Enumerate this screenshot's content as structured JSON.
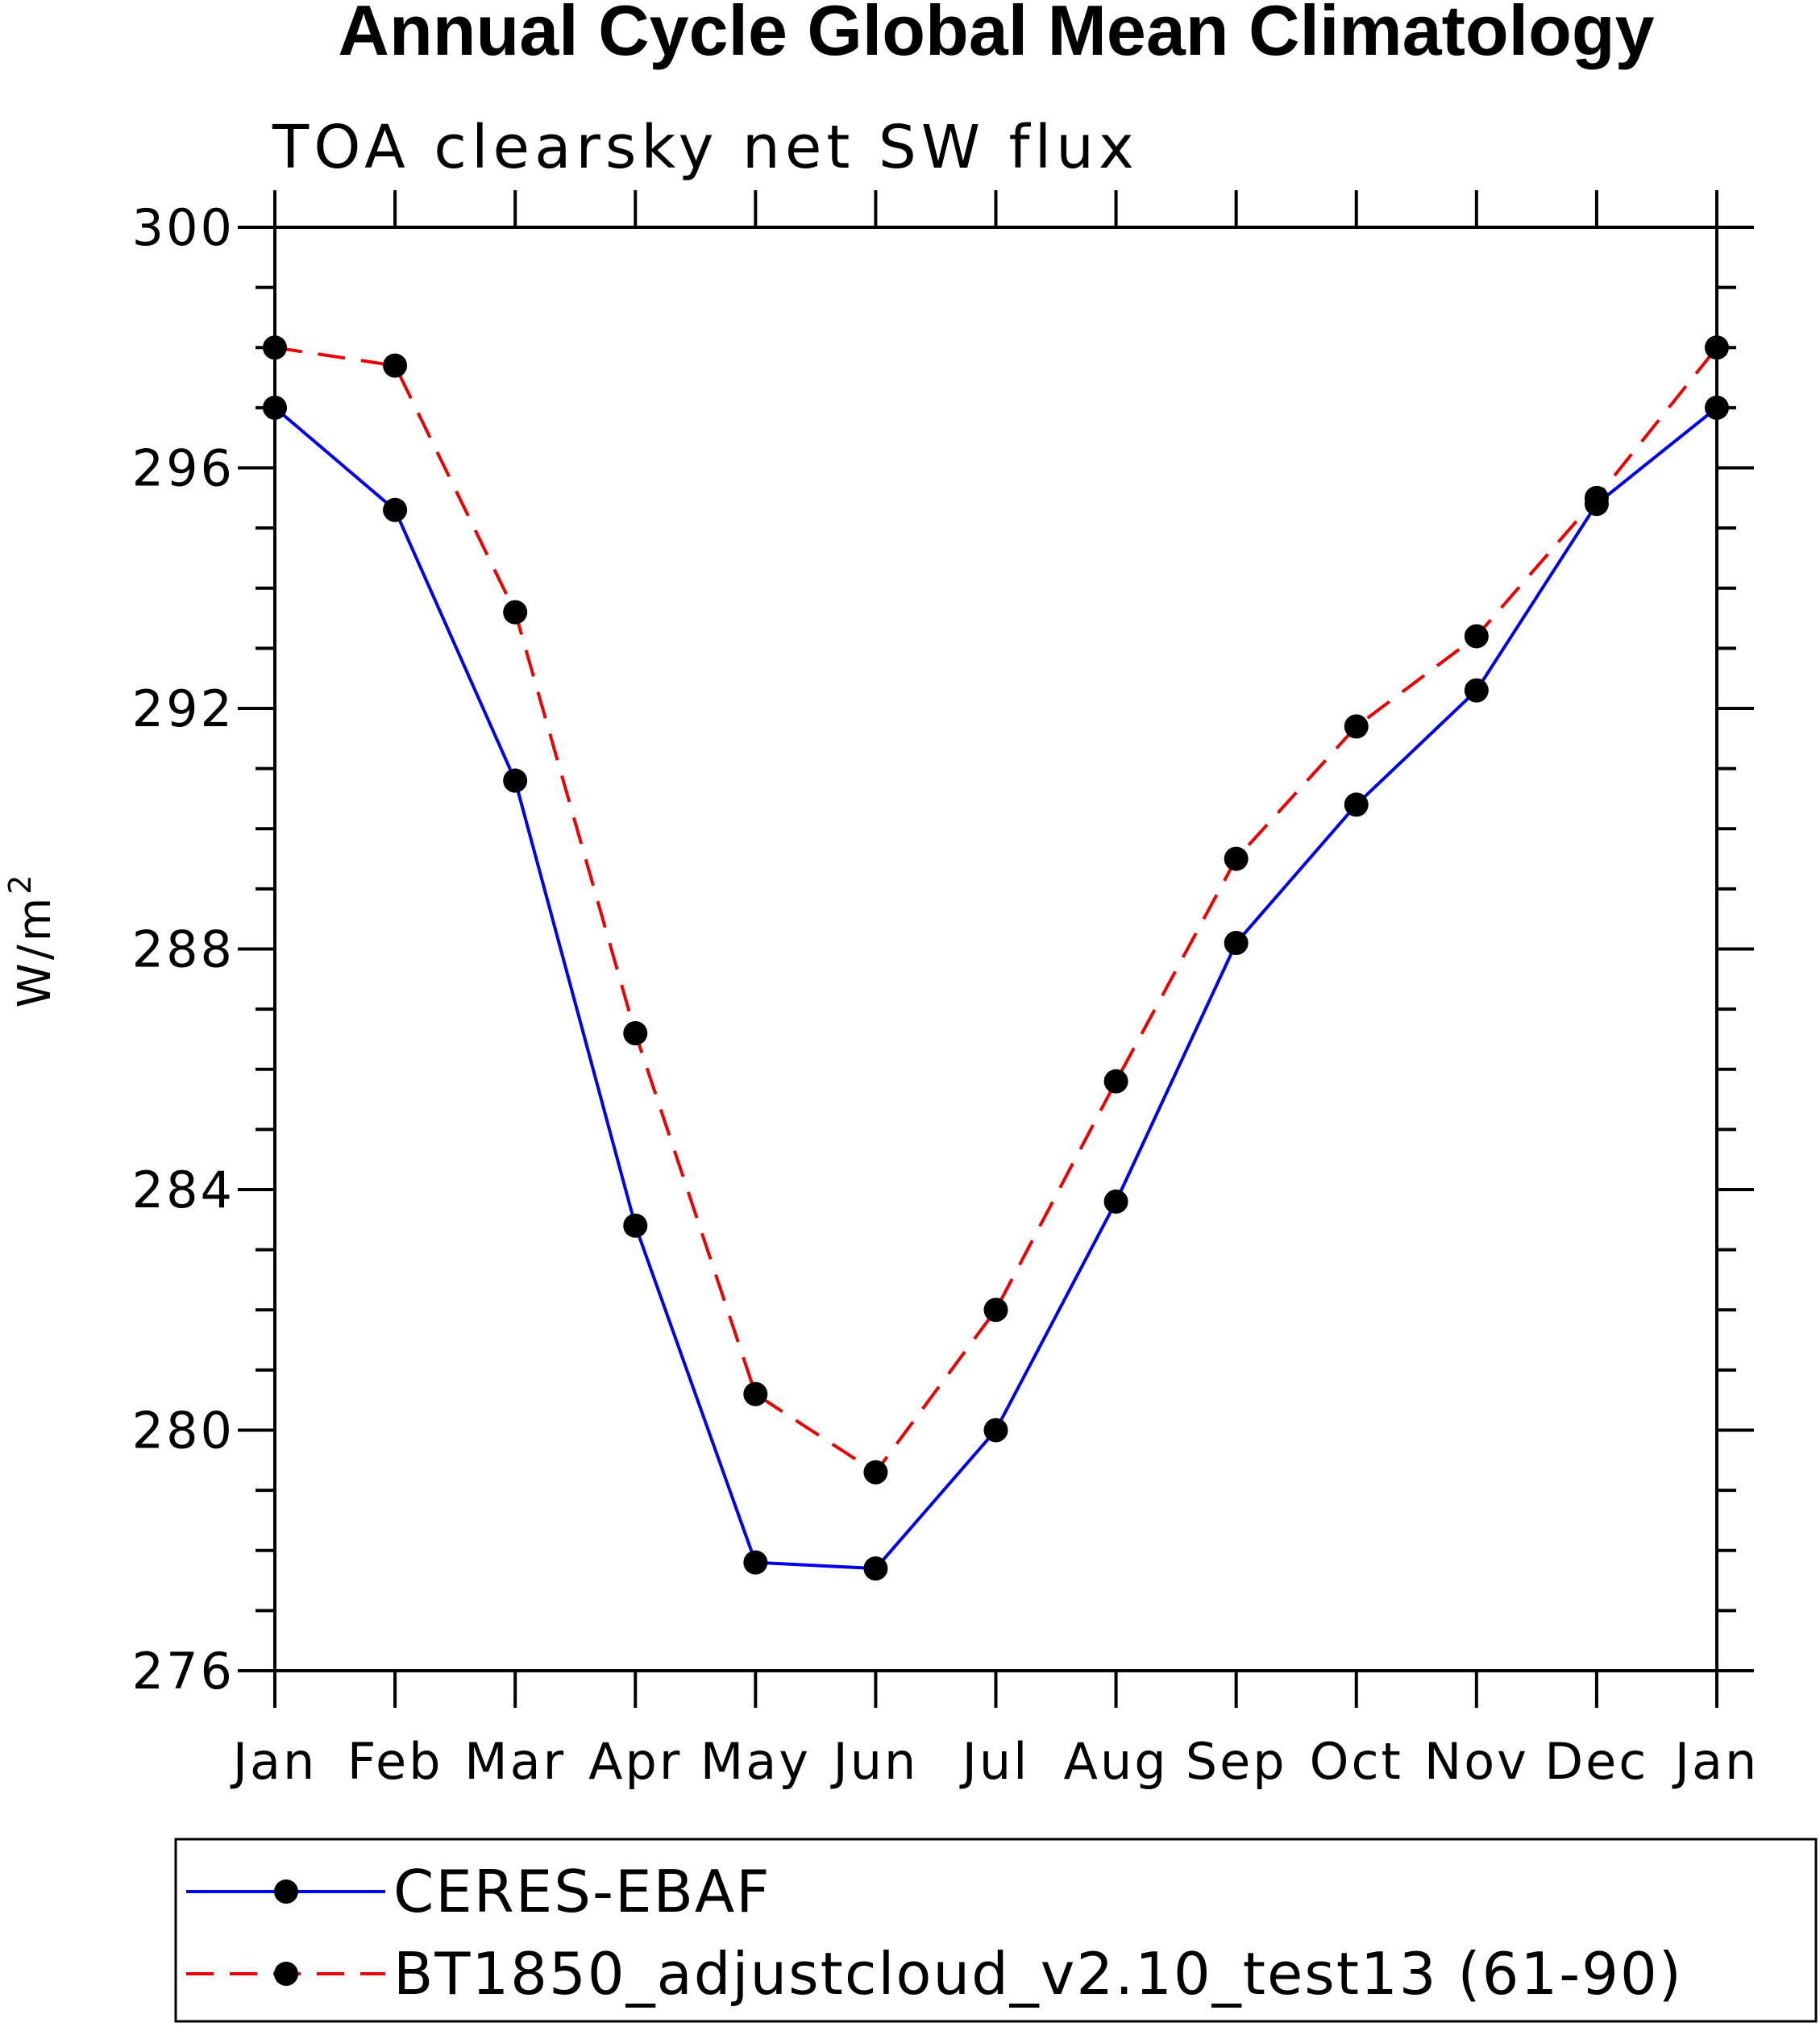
{
  "chart_data": {
    "type": "line",
    "title": "Annual Cycle Global Mean Climatology",
    "subtitle": "TOA clearsky net SW flux",
    "xlabel": "",
    "ylabel": "W/m",
    "ylabel_superscript": "2",
    "categories": [
      "Jan",
      "Feb",
      "Mar",
      "Apr",
      "May",
      "Jun",
      "Jul",
      "Aug",
      "Sep",
      "Oct",
      "Nov",
      "Dec",
      "Jan"
    ],
    "ylim": [
      276,
      300
    ],
    "yticks": [
      276,
      280,
      284,
      288,
      292,
      296,
      300
    ],
    "yminor_step": 1,
    "series": [
      {
        "name": "CERES-EBAF",
        "color": "#0000ee",
        "dash": "solid",
        "marker": "filled-circle",
        "values": [
          297.0,
          295.3,
          290.8,
          283.4,
          277.8,
          277.7,
          280.0,
          283.8,
          288.1,
          290.4,
          292.3,
          295.4,
          297.0
        ]
      },
      {
        "name": "BT1850_adjustcloud_v2.10_test13 (61-90)",
        "color": "#ee0000",
        "dash": "dashed",
        "marker": "filled-circle",
        "values": [
          298.0,
          297.7,
          293.6,
          286.6,
          280.6,
          279.3,
          282.0,
          285.8,
          289.5,
          291.7,
          293.2,
          295.5,
          298.0
        ]
      }
    ],
    "legend_position": "bottom"
  }
}
